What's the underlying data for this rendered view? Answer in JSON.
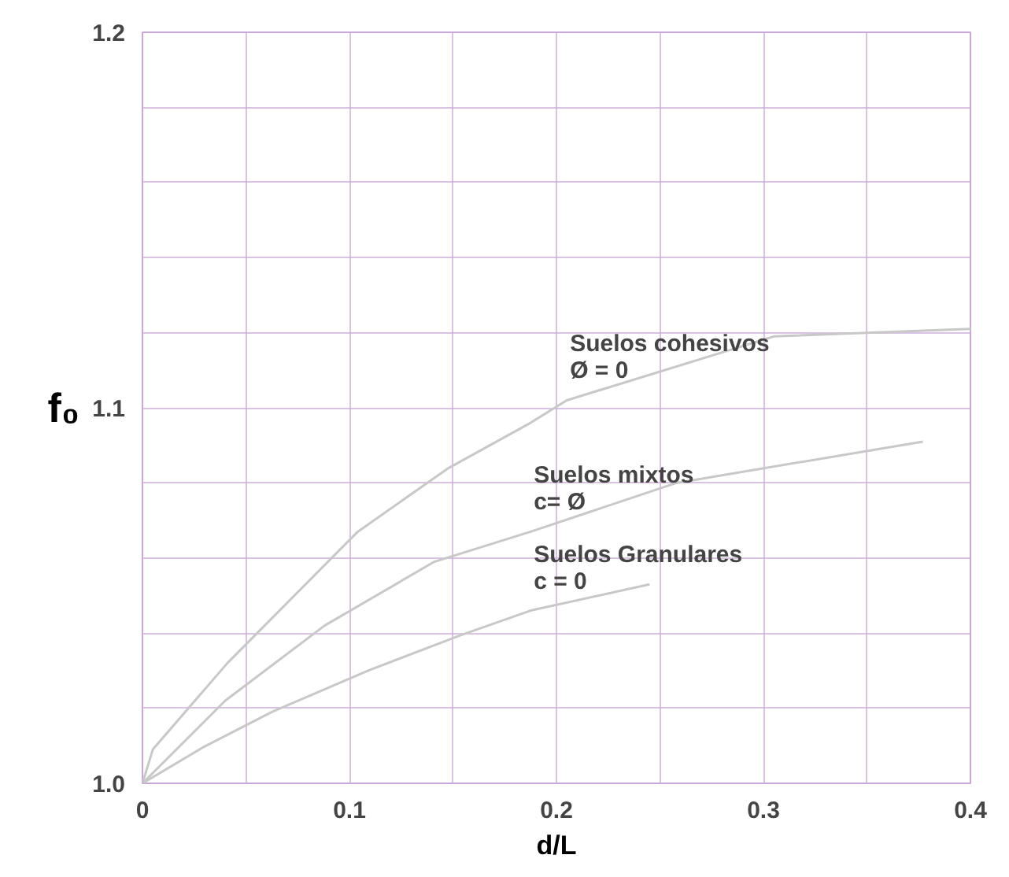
{
  "chart_data": {
    "type": "line",
    "xlabel": "d/L",
    "ylabel": "f₀",
    "xlim": [
      0,
      0.4
    ],
    "ylim": [
      1.0,
      1.2
    ],
    "xticks": [
      0,
      {
        "value": 0.05,
        "label": null
      },
      0.1,
      {
        "value": 0.15,
        "label": null
      },
      0.2,
      {
        "value": 0.25,
        "label": null
      },
      0.3,
      {
        "value": 0.35,
        "label": null
      },
      0.4
    ],
    "yticks": [
      {
        "value": 1.0,
        "label": "1.0"
      },
      {
        "value": 1.02,
        "label": null
      },
      {
        "value": 1.04,
        "label": null
      },
      {
        "value": 1.06,
        "label": null
      },
      {
        "value": 1.08,
        "label": null
      },
      1.1,
      {
        "value": 1.12,
        "label": null
      },
      {
        "value": 1.14,
        "label": null
      },
      {
        "value": 1.16,
        "label": null
      },
      {
        "value": 1.18,
        "label": null
      },
      1.2
    ],
    "grid": true,
    "line_style": "solid",
    "marker": "none",
    "series": [
      {
        "name": "Suelos    cohesivos\nØ = 0",
        "color": "#c8c8c8",
        "x": [
          0,
          0.005,
          0.041,
          0.104,
          0.148,
          0.1875,
          0.205,
          0.305,
          0.4
        ],
        "values": [
          1.0,
          1.009,
          1.032,
          1.067,
          1.084,
          1.096,
          1.102,
          1.119,
          1.121
        ]
      },
      {
        "name": "Suelos    mixtos\nc= Ø",
        "color": "#c8c8c8",
        "x": [
          0,
          0.04,
          0.088,
          0.141,
          0.1875,
          0.258,
          0.377
        ],
        "values": [
          1.0,
          1.022,
          1.042,
          1.059,
          1.067,
          1.08,
          1.091
        ]
      },
      {
        "name": "Suelos    Granulares\nc = 0",
        "color": "#c8c8c8",
        "x": [
          0,
          0.029,
          0.0625,
          0.109,
          0.154,
          0.1875,
          0.245
        ],
        "values": [
          1.0,
          1.0095,
          1.019,
          1.03,
          1.0395,
          1.046,
          1.053
        ]
      }
    ]
  }
}
